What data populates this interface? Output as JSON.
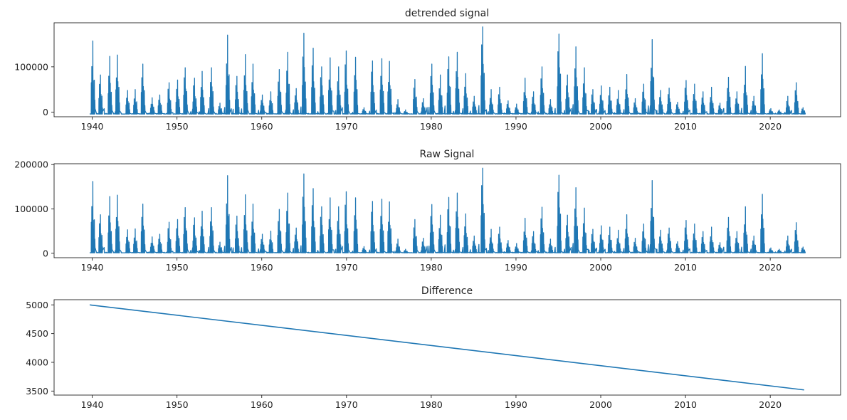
{
  "chart_data": [
    {
      "type": "line",
      "title": "detrended signal",
      "xlim": [
        1935.5,
        2028.3
      ],
      "ylim": [
        -10000,
        197000
      ],
      "xticks": [
        1940,
        1950,
        1960,
        1970,
        1980,
        1990,
        2000,
        2010,
        2020
      ],
      "yticks": [
        0,
        100000
      ],
      "ytick_labels": [
        "0",
        "100000"
      ],
      "x_range": [
        1939.7,
        2024.0
      ],
      "baseline": -4000,
      "line_color": "#1f77b4",
      "peaks": [
        [
          1940.1,
          157000
        ],
        [
          1941.0,
          82000
        ],
        [
          1942.1,
          123000
        ],
        [
          1943.0,
          126000
        ],
        [
          1944.2,
          48000
        ],
        [
          1945.1,
          50000
        ],
        [
          1946.0,
          106000
        ],
        [
          1947.1,
          32000
        ],
        [
          1948.0,
          38000
        ],
        [
          1949.1,
          65000
        ],
        [
          1950.1,
          71000
        ],
        [
          1951.0,
          98000
        ],
        [
          1952.1,
          75000
        ],
        [
          1953.0,
          90000
        ],
        [
          1954.1,
          98000
        ],
        [
          1955.1,
          20000
        ],
        [
          1956.0,
          170000
        ],
        [
          1957.1,
          79000
        ],
        [
          1958.1,
          127000
        ],
        [
          1959.0,
          106000
        ],
        [
          1960.1,
          38000
        ],
        [
          1961.1,
          45000
        ],
        [
          1962.1,
          94000
        ],
        [
          1963.1,
          132000
        ],
        [
          1964.1,
          52000
        ],
        [
          1965.0,
          174000
        ],
        [
          1966.1,
          141000
        ],
        [
          1967.1,
          100000
        ],
        [
          1968.1,
          120000
        ],
        [
          1969.1,
          100000
        ],
        [
          1970.0,
          135000
        ],
        [
          1971.1,
          121000
        ],
        [
          1972.1,
          10000
        ],
        [
          1973.1,
          113000
        ],
        [
          1974.2,
          118000
        ],
        [
          1975.1,
          112000
        ],
        [
          1976.1,
          28000
        ],
        [
          1977.0,
          5000
        ],
        [
          1978.1,
          72000
        ],
        [
          1979.1,
          30000
        ],
        [
          1980.1,
          106000
        ],
        [
          1981.1,
          82000
        ],
        [
          1982.1,
          122000
        ],
        [
          1983.1,
          132000
        ],
        [
          1984.1,
          85000
        ],
        [
          1985.1,
          35000
        ],
        [
          1986.1,
          188000
        ],
        [
          1987.1,
          50000
        ],
        [
          1988.1,
          55000
        ],
        [
          1989.1,
          25000
        ],
        [
          1990.1,
          18000
        ],
        [
          1991.1,
          75000
        ],
        [
          1992.1,
          45000
        ],
        [
          1993.1,
          100000
        ],
        [
          1994.1,
          28000
        ],
        [
          1995.1,
          172000
        ],
        [
          1996.1,
          82000
        ],
        [
          1997.1,
          144000
        ],
        [
          1998.1,
          98000
        ],
        [
          1999.1,
          50000
        ],
        [
          2000.1,
          58000
        ],
        [
          2001.1,
          55000
        ],
        [
          2002.1,
          48000
        ],
        [
          2003.1,
          83000
        ],
        [
          2004.1,
          30000
        ],
        [
          2005.1,
          62000
        ],
        [
          2006.1,
          160000
        ],
        [
          2007.1,
          48000
        ],
        [
          2008.1,
          53000
        ],
        [
          2009.1,
          22000
        ],
        [
          2010.1,
          70000
        ],
        [
          2011.1,
          62000
        ],
        [
          2012.1,
          45000
        ],
        [
          2013.1,
          55000
        ],
        [
          2014.1,
          20000
        ],
        [
          2015.1,
          77000
        ],
        [
          2016.1,
          45000
        ],
        [
          2017.1,
          101000
        ],
        [
          2018.1,
          35000
        ],
        [
          2019.1,
          129000
        ],
        [
          2020.1,
          8000
        ],
        [
          2021.1,
          5000
        ],
        [
          2022.1,
          35000
        ],
        [
          2023.1,
          65000
        ],
        [
          2023.9,
          10000
        ]
      ]
    },
    {
      "type": "line",
      "title": "Raw Signal",
      "xlim": [
        1935.5,
        2028.3
      ],
      "ylim": [
        -10000,
        202000
      ],
      "xticks": [
        1940,
        1950,
        1960,
        1970,
        1980,
        1990,
        2000,
        2010,
        2020
      ],
      "yticks": [
        0,
        100000,
        200000
      ],
      "ytick_labels": [
        "0",
        "100000",
        "200000"
      ],
      "x_range": [
        1939.7,
        2024.0
      ],
      "baseline": 1000,
      "line_color": "#1f77b4",
      "peaks": [
        [
          1940.1,
          162000
        ],
        [
          1941.0,
          87000
        ],
        [
          1942.1,
          128000
        ],
        [
          1943.0,
          131000
        ],
        [
          1944.2,
          53000
        ],
        [
          1945.1,
          55000
        ],
        [
          1946.0,
          111000
        ],
        [
          1947.1,
          37000
        ],
        [
          1948.0,
          43000
        ],
        [
          1949.1,
          70000
        ],
        [
          1950.1,
          76000
        ],
        [
          1951.0,
          103000
        ],
        [
          1952.1,
          80000
        ],
        [
          1953.0,
          95000
        ],
        [
          1954.1,
          103000
        ],
        [
          1955.1,
          25000
        ],
        [
          1956.0,
          175000
        ],
        [
          1957.1,
          84000
        ],
        [
          1958.1,
          132000
        ],
        [
          1959.0,
          111000
        ],
        [
          1960.1,
          43000
        ],
        [
          1961.1,
          50000
        ],
        [
          1962.1,
          99000
        ],
        [
          1963.1,
          136000
        ],
        [
          1964.1,
          57000
        ],
        [
          1965.0,
          179000
        ],
        [
          1966.1,
          146000
        ],
        [
          1967.1,
          105000
        ],
        [
          1968.1,
          125000
        ],
        [
          1969.1,
          105000
        ],
        [
          1970.0,
          139000
        ],
        [
          1971.1,
          125000
        ],
        [
          1972.1,
          15000
        ],
        [
          1973.1,
          117000
        ],
        [
          1974.2,
          122000
        ],
        [
          1975.1,
          116000
        ],
        [
          1976.1,
          32000
        ],
        [
          1977.0,
          9000
        ],
        [
          1978.1,
          76000
        ],
        [
          1979.1,
          34000
        ],
        [
          1980.1,
          110000
        ],
        [
          1981.1,
          86000
        ],
        [
          1982.1,
          126000
        ],
        [
          1983.1,
          136000
        ],
        [
          1984.1,
          89000
        ],
        [
          1985.1,
          39000
        ],
        [
          1986.1,
          192000
        ],
        [
          1987.1,
          54000
        ],
        [
          1988.1,
          59000
        ],
        [
          1989.1,
          29000
        ],
        [
          1990.1,
          22000
        ],
        [
          1991.1,
          79000
        ],
        [
          1992.1,
          49000
        ],
        [
          1993.1,
          104000
        ],
        [
          1994.1,
          32000
        ],
        [
          1995.1,
          176000
        ],
        [
          1996.1,
          86000
        ],
        [
          1997.1,
          148000
        ],
        [
          1998.1,
          102000
        ],
        [
          1999.1,
          54000
        ],
        [
          2000.1,
          62000
        ],
        [
          2001.1,
          59000
        ],
        [
          2002.1,
          52000
        ],
        [
          2003.1,
          87000
        ],
        [
          2004.1,
          34000
        ],
        [
          2005.1,
          66000
        ],
        [
          2006.1,
          164000
        ],
        [
          2007.1,
          52000
        ],
        [
          2008.1,
          57000
        ],
        [
          2009.1,
          26000
        ],
        [
          2010.1,
          74000
        ],
        [
          2011.1,
          66000
        ],
        [
          2012.1,
          49000
        ],
        [
          2013.1,
          59000
        ],
        [
          2014.1,
          24000
        ],
        [
          2015.1,
          81000
        ],
        [
          2016.1,
          49000
        ],
        [
          2017.1,
          105000
        ],
        [
          2018.1,
          39000
        ],
        [
          2019.1,
          133000
        ],
        [
          2020.1,
          12000
        ],
        [
          2021.1,
          9000
        ],
        [
          2022.1,
          39000
        ],
        [
          2023.1,
          69000
        ],
        [
          2023.9,
          14000
        ]
      ]
    },
    {
      "type": "line",
      "title": "Difference",
      "xlim": [
        1935.5,
        2028.3
      ],
      "ylim": [
        3430,
        5090
      ],
      "xticks": [
        1940,
        1950,
        1960,
        1970,
        1980,
        1990,
        2000,
        2010,
        2020
      ],
      "yticks": [
        3500,
        4000,
        4500,
        5000
      ],
      "ytick_labels": [
        "3500",
        "4000",
        "4500",
        "5000"
      ],
      "line_color": "#1f77b4",
      "x": [
        1939.7,
        2024.0
      ],
      "y": [
        5000,
        3520
      ]
    }
  ]
}
